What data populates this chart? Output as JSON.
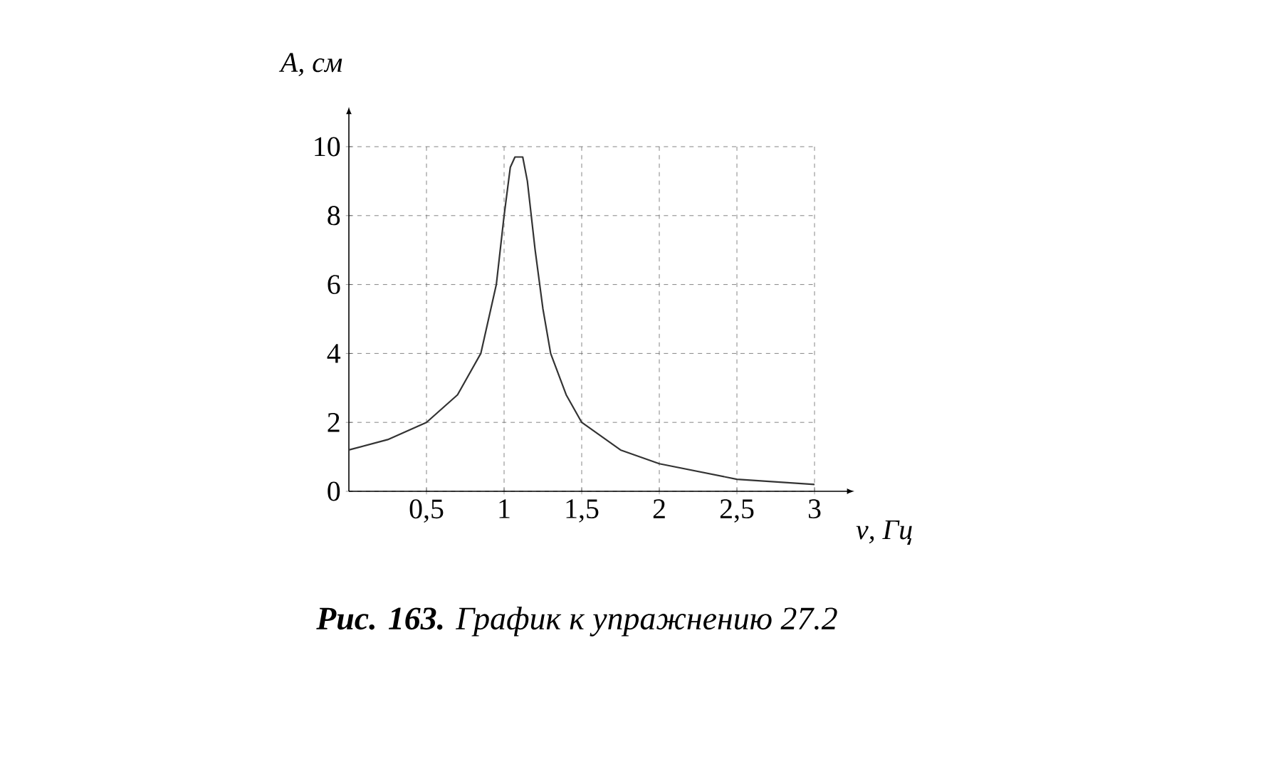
{
  "chart_data": {
    "type": "line",
    "xlabel": "ν, Гц",
    "ylabel": "A, см",
    "annotations": [
      "**Рис. 163.** График к упражнению 27.2"
    ],
    "x": [
      0,
      0.25,
      0.5,
      0.7,
      0.85,
      0.95,
      1.0,
      1.04,
      1.07,
      1.12,
      1.15,
      1.2,
      1.25,
      1.3,
      1.4,
      1.5,
      1.75,
      2,
      2.5,
      3
    ],
    "values": [
      1.2,
      1.5,
      2,
      2.8,
      4,
      6,
      8,
      9.4,
      9.7,
      9.7,
      9.0,
      7.0,
      5.3,
      4,
      2.8,
      2,
      1.2,
      0.8,
      0.35,
      0.2
    ],
    "color": "#333333",
    "grid": true,
    "line_style": "solid",
    "marker": "none",
    "xlim": [
      0,
      3
    ],
    "ylim": [
      0,
      10
    ],
    "xticks": [
      {
        "value": 0.5,
        "label": "0,5"
      },
      1,
      {
        "value": 1.5,
        "label": "1,5"
      },
      2,
      {
        "value": 2.5,
        "label": "2,5"
      },
      3
    ],
    "yticks": [
      0,
      2,
      4,
      6,
      8,
      10
    ]
  }
}
